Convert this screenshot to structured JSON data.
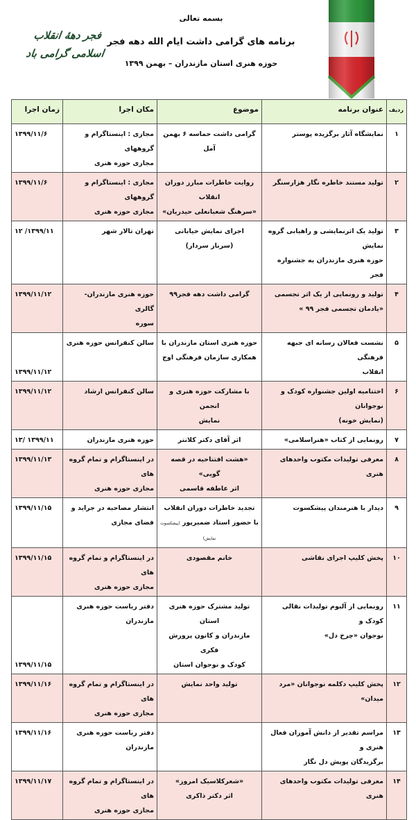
{
  "header": {
    "bismillah": "بسمه تعالی",
    "title": "برنامه های گرامی داشت ایام الله دهه فجر",
    "subtitle": "حوزه هنری استان مازندران – بهمن ۱۳۹۹",
    "logo_text": "فجر دههٔ انقلاب اسلامی گرامی باد",
    "flag_colors": {
      "green": "#2e9a3e",
      "white": "#ffffff",
      "red": "#d8262b"
    }
  },
  "table": {
    "columns": [
      "ردیف",
      "عنوان برنامه",
      "موضوع",
      "مکان اجرا",
      "زمان اجرا"
    ],
    "rows": [
      {
        "num": "۱",
        "title": "نمایشگاه آثار برگزیده  پوستر",
        "topic": "گرامی داشت حماسه ۶ بهمن آمل",
        "place": "مجازی : اینستاگرام و گروههای\nمجازی حوزه هنری",
        "date": "۱۳۹۹/۱۱/۶"
      },
      {
        "num": "۲",
        "title": "تولید مستند خاطره نگار هزارسنگر",
        "topic": "روایت خاطرات مبارز دوران انقلاب\n«سرهنگ شعبانعلی حیدریان»",
        "place": "مجازی : اینستاگرام و گروههای\nمجازی حوزه هنری",
        "date": "۱۳۹۹/۱۱/۶"
      },
      {
        "num": "۳",
        "title": "تولید یک اثرنمایشی و راهیابی گروه نمایش\nحوزه هنری مازندران به جشنواره فجر",
        "topic": "اجرای نمایش خیابانی\n(سرباز سردار)",
        "place": "تهران تالار شهر",
        "date": "۱۳۹۹/۱۱/ ۱۲"
      },
      {
        "num": "۴",
        "title": "تولید و رونمایی از یک اثر تجسمی\n«یادمان تجسمی فجر ۹۹ »",
        "topic": "گرامی داشت دهه فجر۹۹",
        "place": "حوزه هنری مازندران-گالری\nسوره",
        "date": "۱۳۹۹/۱۱/۱۲"
      },
      {
        "num": "۵",
        "title": "نشست فعالان رسانه ای جبهه فرهنگی\nانقلاب",
        "topic": "حوزه هنری استان مازندران  با\nهمکاری سازمان فرهنگی اوج",
        "place": "سالن کنفرانس حوزه هنری",
        "date": "۱۳۹۹/۱۱/۱۲"
      },
      {
        "num": "۶",
        "title": "اختتامیه اولین جشنواره کودک و نوجوانان\n(نمایش خونه)",
        "topic": "با مشارکت حوزه هنری و انجمن\nنمایش",
        "place": "سالن کنفرانس ارشاد",
        "date": "۱۳۹۹/۱۱/۱۲"
      },
      {
        "num": "۷",
        "title": "رونمایی از کتاب «هنراسلامی»",
        "topic": "اثر آقای دکتر کلانتر",
        "place": "حوزه هنری مازندران",
        "date": "۱۳۹۹/۱۱ /۱۳"
      },
      {
        "num": "۸",
        "title": "معرفی تولیدات مکتوب واحدهای هنری",
        "topic": "«هشت افتتاحیه در قصه گویی»\nاثر عاطفه قاسمی",
        "place": "در اینستاگرام و تمام گروه های\nمجازی حوزه هنری",
        "date": "۱۳۹۹/۱۱/۱۳"
      },
      {
        "num": "۹",
        "title": "دیدار با هنرمندان  پیشکسوت",
        "topic": "تجدید خاطرات دوران انقلاب\nبا حضور استاد ضمیرپور",
        "topic_note": "(پیشکسوت نمایش)",
        "place": "انتشار مصاحبه در جراید و\nفضای مجازی",
        "date": "۱۳۹۹/۱۱/۱۵"
      },
      {
        "num": "۱۰",
        "title": "پخش کلیپ اجرای نقاشی",
        "topic": "خانم مقصودی",
        "place": "در اینستاگرام و تمام گروه های\nمجازی حوزه هنری",
        "date": "۱۳۹۹/۱۱/۱۵"
      },
      {
        "num": "۱۱",
        "title": "رونمایی از آلبوم تولیدات نقالی کودک و\nنوجوان «چرخ دل»",
        "topic": "تولید مشترک حوزه هنری استان\nمازندران و کانون پرورش فکری\nکودک و نوجوان استان",
        "place": "دفتر ریاست حوزه هنری\nمازندران",
        "date": "۱۳۹۹/۱۱/۱۵"
      },
      {
        "num": "۱۲",
        "title": "پخش کلیپ دکلمه نوجوانان «مرد میدان»",
        "topic": "تولید واحد نمایش",
        "place": "در اینستاگرام و تمام گروه های\nمجازی حوزه هنری",
        "date": "۱۳۹۹/۱۱/۱۶"
      },
      {
        "num": "۱۳",
        "title": "مراسم تقدیر از دانش آموزان فعال هنری و\nبرگزیدگان پویش دل نگار",
        "topic": "",
        "place": "دفتر ریاست حوزه هنری\nمازندران",
        "date": "۱۳۹۹/۱۱/۱۶"
      },
      {
        "num": "۱۴",
        "title": "معرفی تولیدات مکتوب واحدهای هنری",
        "topic": "«شعرکلاسیک امروز»\nاثر دکتر ذاکری",
        "place": "در اینستاگرام و تمام گروه های\nمجازی حوزه هنری",
        "date": "۱۳۹۹/۱۱/۱۷"
      }
    ]
  }
}
